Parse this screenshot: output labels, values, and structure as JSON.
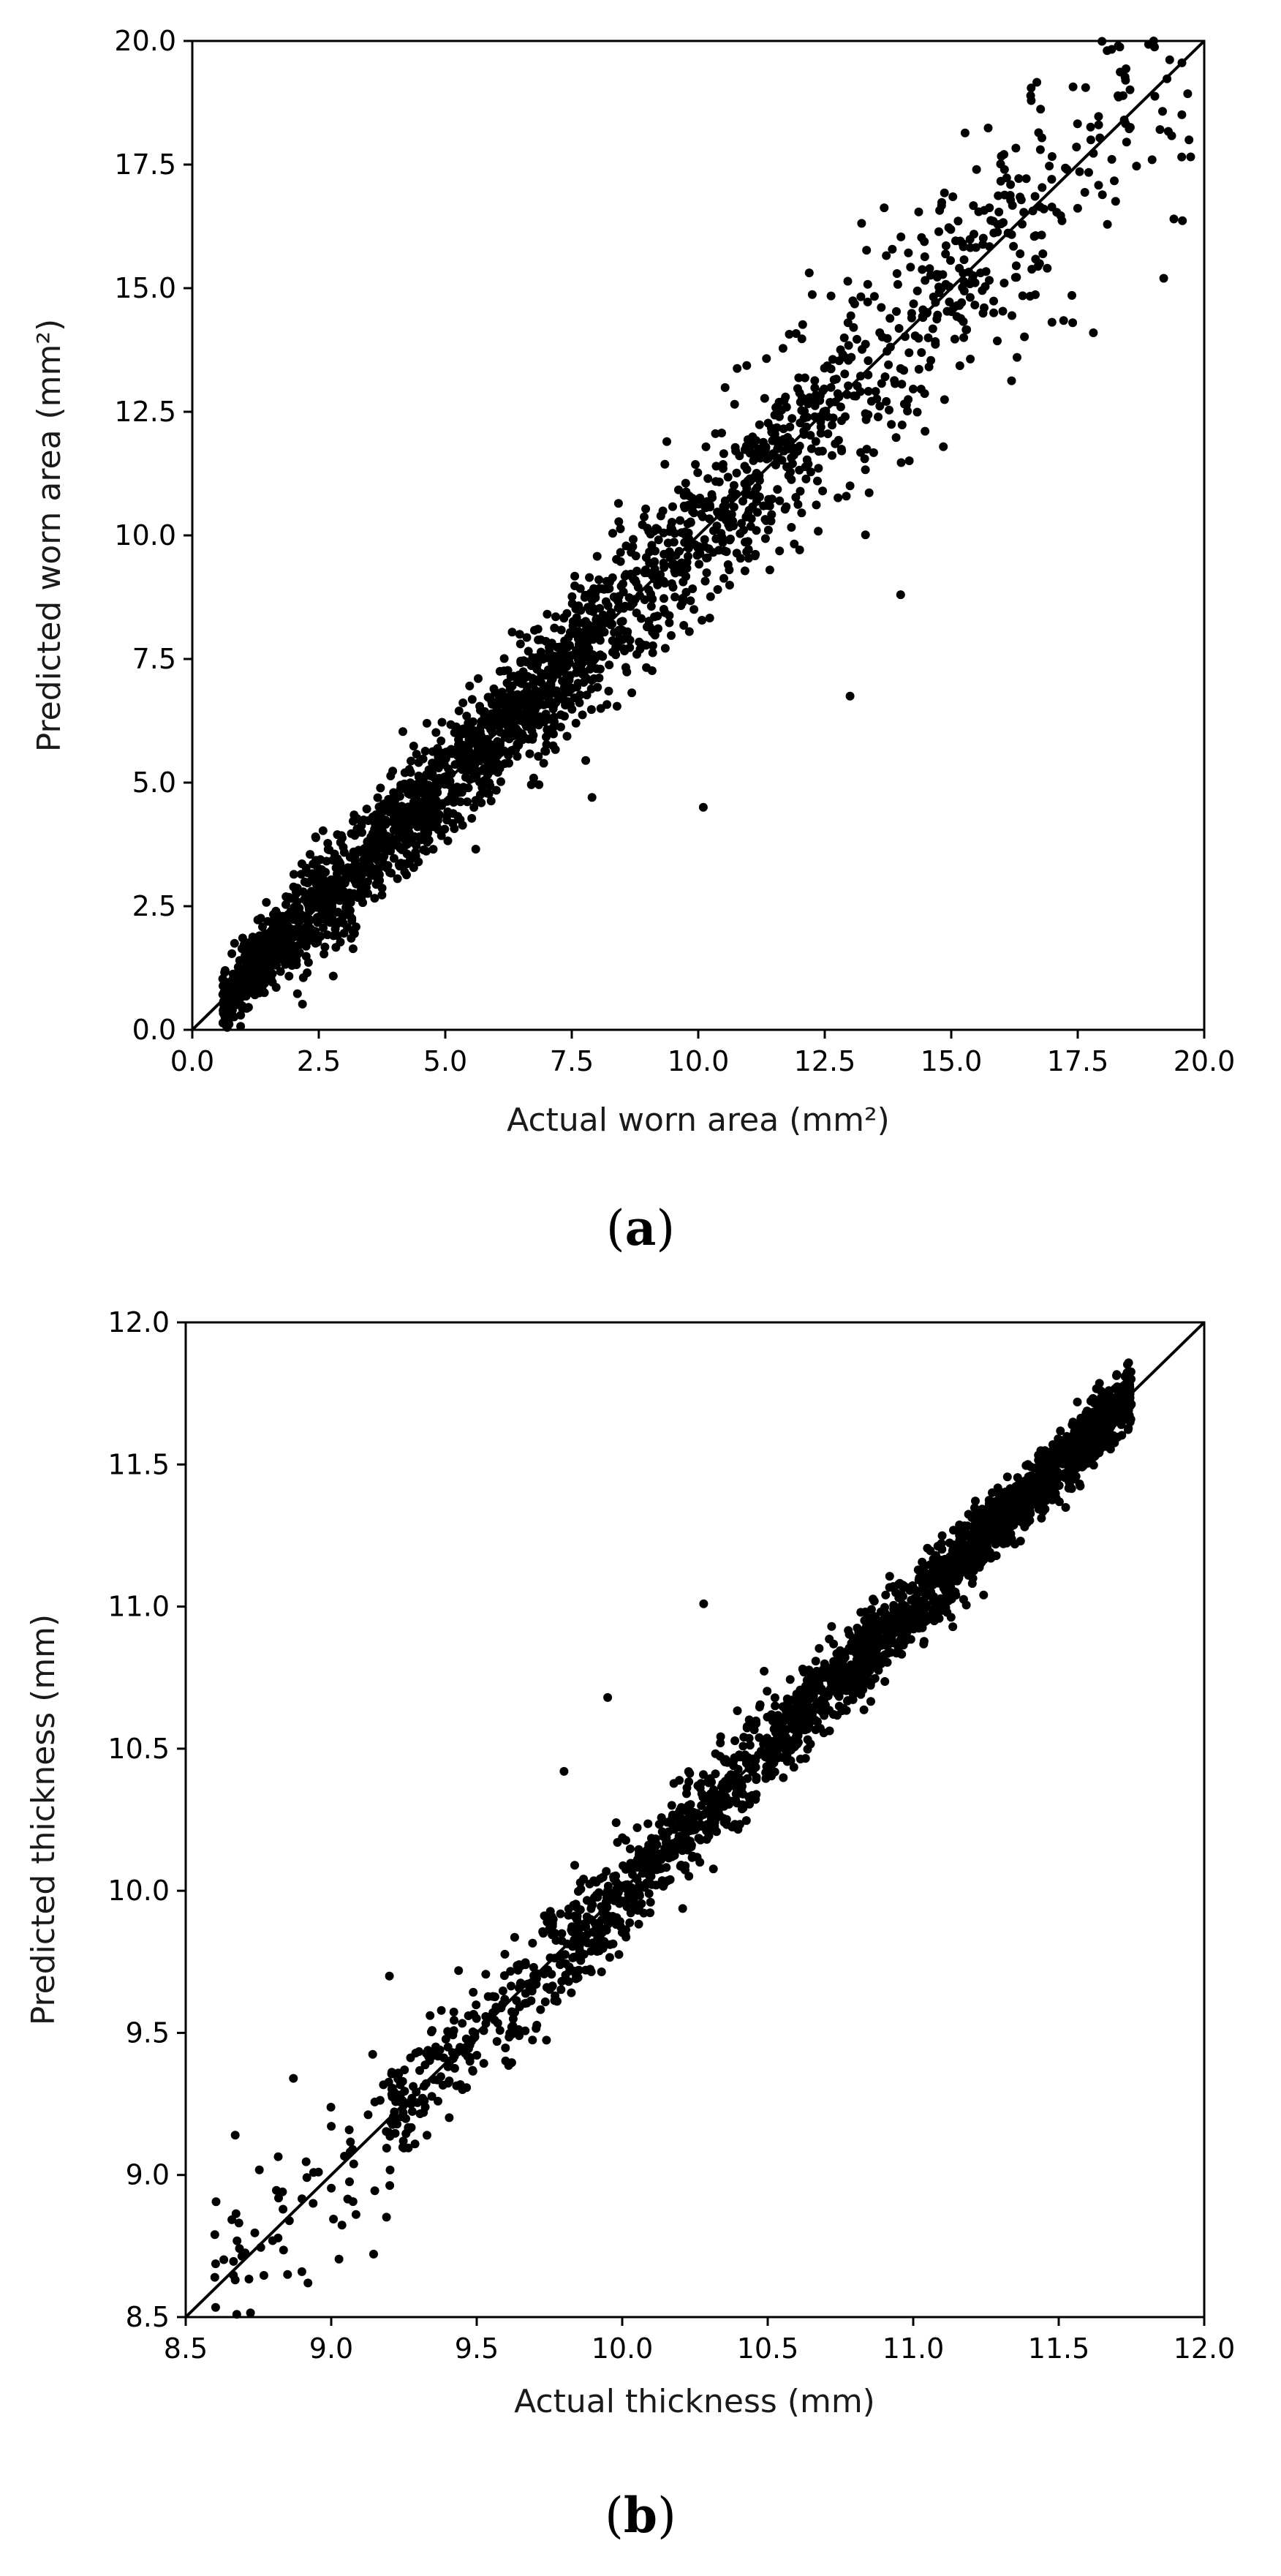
{
  "chart_data": [
    {
      "type": "scatter",
      "panel_label": "a",
      "xlabel": "Actual worn area (mm²)",
      "ylabel": "Predicted worn area (mm²)",
      "xlim": [
        0,
        20
      ],
      "ylim": [
        0,
        20
      ],
      "xticks": [
        "0.0",
        "2.5",
        "5.0",
        "7.5",
        "10.0",
        "12.5",
        "15.0",
        "17.5",
        "20.0"
      ],
      "yticks": [
        "0.0",
        "2.5",
        "5.0",
        "7.5",
        "10.0",
        "12.5",
        "15.0",
        "17.5",
        "20.0"
      ],
      "reference_line": "y = x",
      "grid": false,
      "marker_color": "#000000",
      "clusters": [
        {
          "x_from": 0.6,
          "x_to": 2.0,
          "count": 420,
          "spread": 0.35
        },
        {
          "x_from": 2.0,
          "x_to": 5.0,
          "count": 700,
          "spread": 0.55
        },
        {
          "x_from": 5.0,
          "x_to": 8.0,
          "count": 620,
          "spread": 0.65
        },
        {
          "x_from": 8.0,
          "x_to": 12.5,
          "count": 520,
          "spread": 0.9
        },
        {
          "x_from": 12.5,
          "x_to": 17.0,
          "count": 300,
          "spread": 1.2
        },
        {
          "x_from": 17.0,
          "x_to": 19.8,
          "count": 70,
          "spread": 1.4
        }
      ],
      "points": [
        {
          "x": 10.1,
          "y": 4.5
        },
        {
          "x": 13.0,
          "y": 6.75
        },
        {
          "x": 14.0,
          "y": 8.8
        },
        {
          "x": 19.2,
          "y": 15.2
        },
        {
          "x": 19.0,
          "y": 20.0
        },
        {
          "x": 18.3,
          "y": 19.9
        },
        {
          "x": 19.7,
          "y": 18.0
        },
        {
          "x": 19.4,
          "y": 16.4
        },
        {
          "x": 17.4,
          "y": 14.3
        },
        {
          "x": 16.3,
          "y": 13.6
        },
        {
          "x": 7.9,
          "y": 4.7
        },
        {
          "x": 15.5,
          "y": 17.4
        }
      ]
    },
    {
      "type": "scatter",
      "panel_label": "b",
      "xlabel": "Actual thickness (mm)",
      "ylabel": "Predicted thickness (mm)",
      "xlim": [
        8.5,
        12.0
      ],
      "ylim": [
        8.5,
        12.0
      ],
      "xticks": [
        "8.5",
        "9.0",
        "9.5",
        "10.0",
        "10.5",
        "11.0",
        "11.5",
        "12.0"
      ],
      "yticks": [
        "8.5",
        "9.0",
        "9.5",
        "10.0",
        "10.5",
        "11.0",
        "11.5",
        "12.0"
      ],
      "reference_line": "y = x",
      "grid": false,
      "marker_color": "#000000",
      "clusters": [
        {
          "x_from": 8.6,
          "x_to": 9.2,
          "count": 70,
          "spread": 0.15
        },
        {
          "x_from": 9.2,
          "x_to": 9.8,
          "count": 240,
          "spread": 0.1
        },
        {
          "x_from": 9.8,
          "x_to": 10.5,
          "count": 520,
          "spread": 0.085
        },
        {
          "x_from": 10.5,
          "x_to": 11.2,
          "count": 820,
          "spread": 0.07
        },
        {
          "x_from": 11.2,
          "x_to": 11.75,
          "count": 900,
          "spread": 0.06
        }
      ],
      "points": [
        {
          "x": 10.28,
          "y": 11.01
        },
        {
          "x": 9.95,
          "y": 10.68
        },
        {
          "x": 9.8,
          "y": 10.42
        },
        {
          "x": 8.6,
          "y": 8.64
        },
        {
          "x": 8.92,
          "y": 8.62
        },
        {
          "x": 8.85,
          "y": 8.65
        },
        {
          "x": 8.67,
          "y": 9.14
        },
        {
          "x": 8.87,
          "y": 9.34
        },
        {
          "x": 8.6,
          "y": 8.79
        },
        {
          "x": 9.2,
          "y": 9.7
        }
      ]
    }
  ],
  "captions": [
    {
      "open": "(",
      "letter": "a",
      "close": ")"
    },
    {
      "open": "(",
      "letter": "b",
      "close": ")"
    }
  ]
}
